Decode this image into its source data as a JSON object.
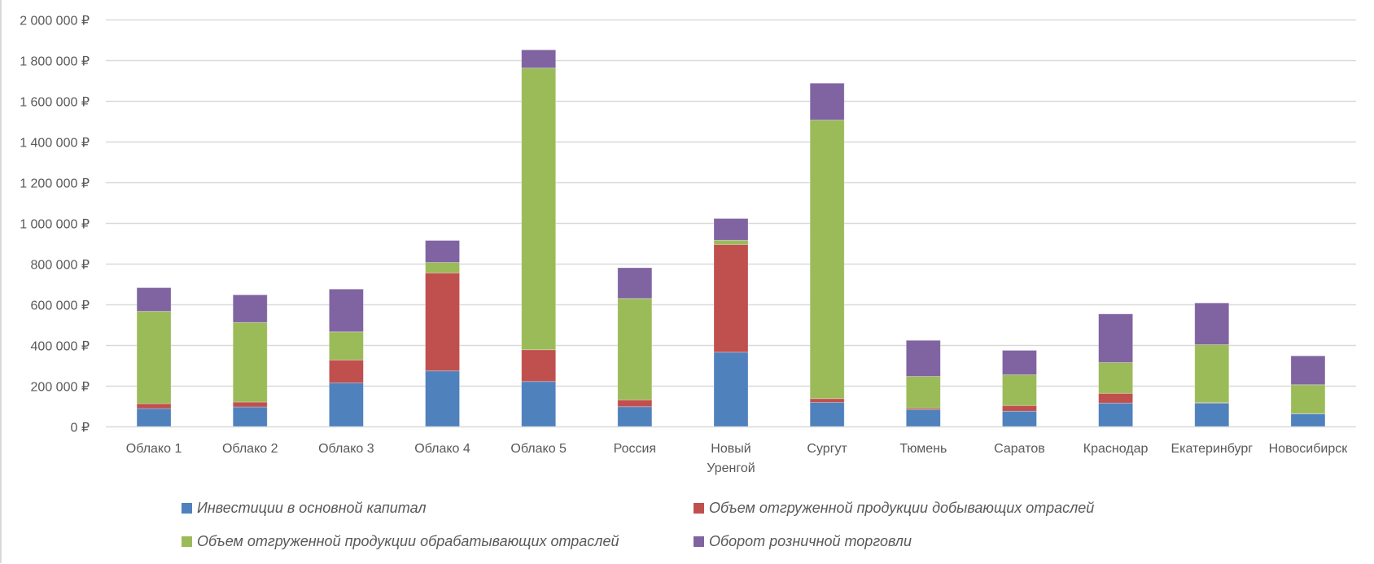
{
  "chart_data": {
    "type": "bar",
    "stacked": true,
    "title": "",
    "xlabel": "",
    "ylabel": "",
    "ylim": [
      0,
      2000000
    ],
    "y_ticks": [
      0,
      200000,
      400000,
      600000,
      800000,
      1000000,
      1200000,
      1400000,
      1600000,
      1800000,
      2000000
    ],
    "y_tick_labels": [
      "0 ₽",
      "200 000 ₽",
      "400 000 ₽",
      "600 000 ₽",
      "800 000 ₽",
      "1 000 000 ₽",
      "1 200 000 ₽",
      "1 400 000 ₽",
      "1 600 000 ₽",
      "1 800 000 ₽",
      "2 000 000 ₽"
    ],
    "grid": true,
    "legend_position": "bottom",
    "categories": [
      [
        "Облако 1"
      ],
      [
        "Облако 2"
      ],
      [
        "Облако 3"
      ],
      [
        "Облако 4"
      ],
      [
        "Облако 5"
      ],
      [
        "Россия"
      ],
      [
        "Новый",
        "Уренгой"
      ],
      [
        "Сургут"
      ],
      [
        "Тюмень"
      ],
      [
        "Саратов"
      ],
      [
        "Краснодар"
      ],
      [
        "Екатеринбург"
      ],
      [
        "Новосибирск"
      ]
    ],
    "series": [
      {
        "name": "Инвестиции в основной капитал",
        "color": "#4f81bd",
        "values": [
          88000,
          96000,
          214000,
          273000,
          221000,
          97000,
          365000,
          118000,
          83000,
          75000,
          115000,
          115000,
          62000
        ]
      },
      {
        "name": "Объем отгруженной продукции добывающих отраслей",
        "color": "#c0504d",
        "values": [
          24000,
          24000,
          113000,
          482000,
          156000,
          34000,
          529000,
          19000,
          7000,
          28000,
          48000,
          2000,
          1000
        ]
      },
      {
        "name": "Объем отгруженной продукции обрабатывающих отраслей",
        "color": "#9bbb59",
        "values": [
          454000,
          391000,
          138000,
          51000,
          1385000,
          498000,
          21000,
          1369000,
          156000,
          151000,
          151000,
          285000,
          142000
        ]
      },
      {
        "name": "Оборот розничной торговли",
        "color": "#8064a2",
        "values": [
          116000,
          136000,
          210000,
          108000,
          89000,
          151000,
          107000,
          181000,
          177000,
          120000,
          239000,
          205000,
          142000
        ]
      }
    ]
  }
}
